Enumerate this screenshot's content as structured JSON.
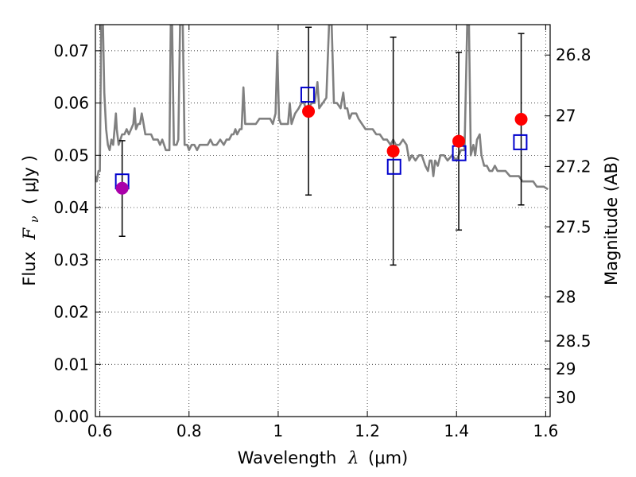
{
  "chart_data": {
    "type": "scatter",
    "xlabel_prefix": "Wavelength",
    "xlabel_lambda": "λ",
    "xlabel_unit": "(μm)",
    "ylabel_prefix": "Flux",
    "ylabel_symbol": "F",
    "ylabel_sub": "ν",
    "ylabel_unit": "( μJy )",
    "y2label": "Magnitude (AB)",
    "xlim": [
      0.59,
      1.61
    ],
    "ylim": [
      0.0,
      0.075
    ],
    "grid": true,
    "x_ticks": [
      {
        "value": 0.6,
        "label": "0.6"
      },
      {
        "value": 0.8,
        "label": "0.8"
      },
      {
        "value": 1.0,
        "label": "1"
      },
      {
        "value": 1.2,
        "label": "1.2"
      },
      {
        "value": 1.4,
        "label": "1.4"
      },
      {
        "value": 1.6,
        "label": "1.6"
      }
    ],
    "y_ticks": [
      {
        "value": 0.0,
        "label": "0.00"
      },
      {
        "value": 0.01,
        "label": "0.01"
      },
      {
        "value": 0.02,
        "label": "0.02"
      },
      {
        "value": 0.03,
        "label": "0.03"
      },
      {
        "value": 0.04,
        "label": "0.04"
      },
      {
        "value": 0.05,
        "label": "0.05"
      },
      {
        "value": 0.06,
        "label": "0.06"
      },
      {
        "value": 0.07,
        "label": "0.07"
      }
    ],
    "y2_ticks": [
      {
        "mag": 26.8,
        "label": "26.8"
      },
      {
        "mag": 27.0,
        "label": "27"
      },
      {
        "mag": 27.2,
        "label": "27.2"
      },
      {
        "mag": 27.5,
        "label": "27.5"
      },
      {
        "mag": 28.0,
        "label": "28"
      },
      {
        "mag": 28.5,
        "label": "28.5"
      },
      {
        "mag": 29.0,
        "label": "29"
      },
      {
        "mag": 30.0,
        "label": "30"
      }
    ],
    "sed_color": "#808080",
    "sed": [
      [
        0.59,
        0.046
      ],
      [
        0.593,
        0.045
      ],
      [
        0.597,
        0.047
      ],
      [
        0.6,
        0.047
      ],
      [
        0.603,
        0.075
      ],
      [
        0.607,
        0.075
      ],
      [
        0.61,
        0.062
      ],
      [
        0.614,
        0.055
      ],
      [
        0.618,
        0.052
      ],
      [
        0.622,
        0.051
      ],
      [
        0.626,
        0.053
      ],
      [
        0.63,
        0.052
      ],
      [
        0.633,
        0.055
      ],
      [
        0.636,
        0.058
      ],
      [
        0.638,
        0.055
      ],
      [
        0.642,
        0.052
      ],
      [
        0.646,
        0.053
      ],
      [
        0.65,
        0.054
      ],
      [
        0.655,
        0.054
      ],
      [
        0.66,
        0.055
      ],
      [
        0.665,
        0.054
      ],
      [
        0.67,
        0.055
      ],
      [
        0.675,
        0.056
      ],
      [
        0.678,
        0.059
      ],
      [
        0.681,
        0.055
      ],
      [
        0.686,
        0.056
      ],
      [
        0.69,
        0.056
      ],
      [
        0.694,
        0.058
      ],
      [
        0.698,
        0.056
      ],
      [
        0.702,
        0.054
      ],
      [
        0.708,
        0.054
      ],
      [
        0.715,
        0.054
      ],
      [
        0.72,
        0.053
      ],
      [
        0.725,
        0.053
      ],
      [
        0.73,
        0.053
      ],
      [
        0.735,
        0.052
      ],
      [
        0.74,
        0.053
      ],
      [
        0.744,
        0.052
      ],
      [
        0.748,
        0.051
      ],
      [
        0.752,
        0.051
      ],
      [
        0.756,
        0.051
      ],
      [
        0.759,
        0.075
      ],
      [
        0.762,
        0.075
      ],
      [
        0.766,
        0.052
      ],
      [
        0.772,
        0.052
      ],
      [
        0.776,
        0.053
      ],
      [
        0.78,
        0.075
      ],
      [
        0.786,
        0.075
      ],
      [
        0.79,
        0.052
      ],
      [
        0.796,
        0.052
      ],
      [
        0.8,
        0.051
      ],
      [
        0.806,
        0.052
      ],
      [
        0.812,
        0.052
      ],
      [
        0.818,
        0.051
      ],
      [
        0.824,
        0.052
      ],
      [
        0.83,
        0.052
      ],
      [
        0.836,
        0.052
      ],
      [
        0.842,
        0.052
      ],
      [
        0.848,
        0.053
      ],
      [
        0.854,
        0.052
      ],
      [
        0.862,
        0.052
      ],
      [
        0.87,
        0.053
      ],
      [
        0.878,
        0.052
      ],
      [
        0.884,
        0.053
      ],
      [
        0.89,
        0.053
      ],
      [
        0.896,
        0.054
      ],
      [
        0.9,
        0.054
      ],
      [
        0.904,
        0.055
      ],
      [
        0.908,
        0.054
      ],
      [
        0.914,
        0.055
      ],
      [
        0.918,
        0.055
      ],
      [
        0.922,
        0.063
      ],
      [
        0.926,
        0.056
      ],
      [
        0.934,
        0.056
      ],
      [
        0.942,
        0.056
      ],
      [
        0.95,
        0.056
      ],
      [
        0.958,
        0.057
      ],
      [
        0.964,
        0.057
      ],
      [
        0.97,
        0.057
      ],
      [
        0.976,
        0.057
      ],
      [
        0.982,
        0.057
      ],
      [
        0.988,
        0.056
      ],
      [
        0.994,
        0.058
      ],
      [
        0.998,
        0.07
      ],
      [
        1.002,
        0.057
      ],
      [
        1.006,
        0.056
      ],
      [
        1.014,
        0.056
      ],
      [
        1.022,
        0.056
      ],
      [
        1.026,
        0.06
      ],
      [
        1.03,
        0.056
      ],
      [
        1.038,
        0.058
      ],
      [
        1.046,
        0.059
      ],
      [
        1.052,
        0.06
      ],
      [
        1.058,
        0.06
      ],
      [
        1.062,
        0.059
      ],
      [
        1.068,
        0.059
      ],
      [
        1.075,
        0.06
      ],
      [
        1.082,
        0.06
      ],
      [
        1.088,
        0.064
      ],
      [
        1.092,
        0.059
      ],
      [
        1.1,
        0.06
      ],
      [
        1.108,
        0.061
      ],
      [
        1.114,
        0.075
      ],
      [
        1.12,
        0.075
      ],
      [
        1.125,
        0.06
      ],
      [
        1.132,
        0.06
      ],
      [
        1.14,
        0.059
      ],
      [
        1.146,
        0.062
      ],
      [
        1.15,
        0.059
      ],
      [
        1.155,
        0.059
      ],
      [
        1.16,
        0.057
      ],
      [
        1.165,
        0.058
      ],
      [
        1.17,
        0.058
      ],
      [
        1.175,
        0.058
      ],
      [
        1.18,
        0.057
      ],
      [
        1.188,
        0.056
      ],
      [
        1.196,
        0.055
      ],
      [
        1.204,
        0.055
      ],
      [
        1.212,
        0.055
      ],
      [
        1.22,
        0.054
      ],
      [
        1.228,
        0.054
      ],
      [
        1.236,
        0.053
      ],
      [
        1.244,
        0.053
      ],
      [
        1.252,
        0.052
      ],
      [
        1.258,
        0.053
      ],
      [
        1.264,
        0.052
      ],
      [
        1.272,
        0.052
      ],
      [
        1.28,
        0.053
      ],
      [
        1.288,
        0.052
      ],
      [
        1.294,
        0.049
      ],
      [
        1.3,
        0.05
      ],
      [
        1.308,
        0.049
      ],
      [
        1.316,
        0.05
      ],
      [
        1.322,
        0.05
      ],
      [
        1.33,
        0.048
      ],
      [
        1.336,
        0.047
      ],
      [
        1.34,
        0.049
      ],
      [
        1.344,
        0.049
      ],
      [
        1.348,
        0.046
      ],
      [
        1.352,
        0.049
      ],
      [
        1.358,
        0.048
      ],
      [
        1.364,
        0.05
      ],
      [
        1.372,
        0.05
      ],
      [
        1.38,
        0.049
      ],
      [
        1.39,
        0.05
      ],
      [
        1.4,
        0.049
      ],
      [
        1.41,
        0.051
      ],
      [
        1.418,
        0.051
      ],
      [
        1.424,
        0.075
      ],
      [
        1.428,
        0.075
      ],
      [
        1.432,
        0.05
      ],
      [
        1.438,
        0.052
      ],
      [
        1.442,
        0.05
      ],
      [
        1.446,
        0.053
      ],
      [
        1.452,
        0.054
      ],
      [
        1.456,
        0.05
      ],
      [
        1.462,
        0.048
      ],
      [
        1.468,
        0.048
      ],
      [
        1.474,
        0.047
      ],
      [
        1.48,
        0.047
      ],
      [
        1.486,
        0.048
      ],
      [
        1.492,
        0.047
      ],
      [
        1.5,
        0.047
      ],
      [
        1.51,
        0.047
      ],
      [
        1.52,
        0.046
      ],
      [
        1.53,
        0.046
      ],
      [
        1.54,
        0.046
      ],
      [
        1.548,
        0.045
      ],
      [
        1.556,
        0.045
      ],
      [
        1.564,
        0.045
      ],
      [
        1.572,
        0.045
      ],
      [
        1.58,
        0.044
      ],
      [
        1.588,
        0.044
      ],
      [
        1.596,
        0.044
      ],
      [
        1.605,
        0.0435
      ]
    ],
    "observed": [
      {
        "x": 0.65,
        "y": 0.0437,
        "err_low": 0.0345,
        "err_high": 0.0528,
        "color": "#aa00aa"
      },
      {
        "x": 1.068,
        "y": 0.0584,
        "err_low": 0.0424,
        "err_high": 0.0745,
        "color": "#ff0000"
      },
      {
        "x": 1.258,
        "y": 0.0508,
        "err_low": 0.029,
        "err_high": 0.0726,
        "color": "#ff0000"
      },
      {
        "x": 1.405,
        "y": 0.0527,
        "err_low": 0.0357,
        "err_high": 0.0697,
        "color": "#ff0000"
      },
      {
        "x": 1.545,
        "y": 0.0569,
        "err_low": 0.0405,
        "err_high": 0.0733,
        "color": "#ff0000"
      }
    ],
    "model": [
      {
        "x": 0.65,
        "y": 0.045
      },
      {
        "x": 1.066,
        "y": 0.0616
      },
      {
        "x": 1.26,
        "y": 0.0478
      },
      {
        "x": 1.406,
        "y": 0.0504
      },
      {
        "x": 1.543,
        "y": 0.0525
      }
    ],
    "model_color": "#0000cc"
  }
}
